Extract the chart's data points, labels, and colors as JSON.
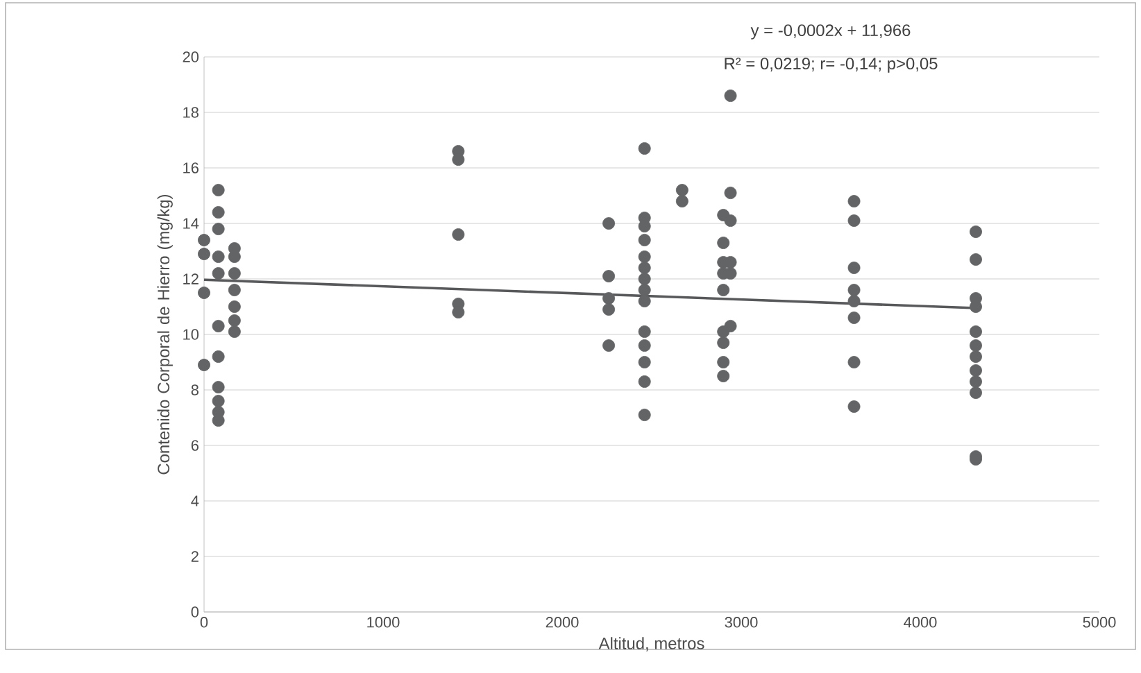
{
  "chart_data": {
    "type": "scatter",
    "xlabel": "Altitud, metros",
    "ylabel": "Contenido Corporal de Hierro (mg/kg)",
    "annotations": [
      "y = -0,0002x + 11,966",
      "R² = 0,0219; r= -0,14; p>0,05"
    ],
    "xlim": [
      0,
      5000
    ],
    "xticks": [
      0,
      1000,
      2000,
      3000,
      4000,
      5000
    ],
    "ylim": [
      0,
      20
    ],
    "yticks": [
      0,
      2,
      4,
      6,
      8,
      10,
      12,
      14,
      16,
      18,
      20
    ],
    "grid": "y",
    "series": [
      {
        "marker": "circle",
        "color": "#636466",
        "x": [
          0,
          0,
          0,
          0,
          80,
          80,
          80,
          80,
          80,
          80,
          80,
          80,
          80,
          80,
          80,
          170,
          170,
          170,
          170,
          170,
          170,
          170,
          1420,
          1420,
          1420,
          1420,
          1420,
          2260,
          2260,
          2260,
          2260,
          2260,
          2460,
          2460,
          2460,
          2460,
          2460,
          2460,
          2460,
          2460,
          2460,
          2460,
          2460,
          2460,
          2460,
          2460,
          2670,
          2670,
          2900,
          2900,
          2900,
          2900,
          2900,
          2900,
          2900,
          2900,
          2900,
          2940,
          2940,
          2940,
          2940,
          2940,
          2940,
          3630,
          3630,
          3630,
          3630,
          3630,
          3630,
          3630,
          3630,
          4310,
          4310,
          4310,
          4310,
          4310,
          4310,
          4310,
          4310,
          4310,
          4310,
          4310,
          4310
        ],
        "values": [
          13.4,
          12.9,
          11.5,
          8.9,
          15.2,
          14.4,
          13.8,
          12.8,
          12.2,
          10.3,
          9.2,
          8.1,
          7.6,
          7.2,
          6.9,
          13.1,
          12.8,
          12.2,
          11.6,
          11.0,
          10.5,
          10.1,
          16.6,
          16.3,
          13.6,
          11.1,
          10.8,
          14.0,
          12.1,
          11.3,
          10.9,
          9.6,
          16.7,
          14.2,
          13.9,
          13.4,
          12.8,
          12.4,
          12.0,
          11.6,
          11.2,
          10.1,
          9.6,
          9.0,
          8.3,
          7.1,
          15.2,
          14.8,
          14.3,
          13.3,
          12.6,
          12.2,
          11.6,
          10.1,
          9.7,
          9.0,
          8.5,
          18.6,
          15.1,
          14.1,
          12.6,
          12.2,
          10.3,
          14.8,
          14.1,
          12.4,
          11.6,
          11.2,
          10.6,
          9.0,
          7.4,
          13.7,
          12.7,
          11.3,
          11.0,
          10.1,
          9.6,
          9.2,
          8.7,
          8.3,
          7.9,
          5.6,
          5.5
        ]
      },
      {
        "type": "line",
        "marker": "none",
        "color": "#58595b",
        "x": [
          0,
          4310
        ],
        "values": [
          11.97,
          10.95
        ]
      }
    ]
  }
}
